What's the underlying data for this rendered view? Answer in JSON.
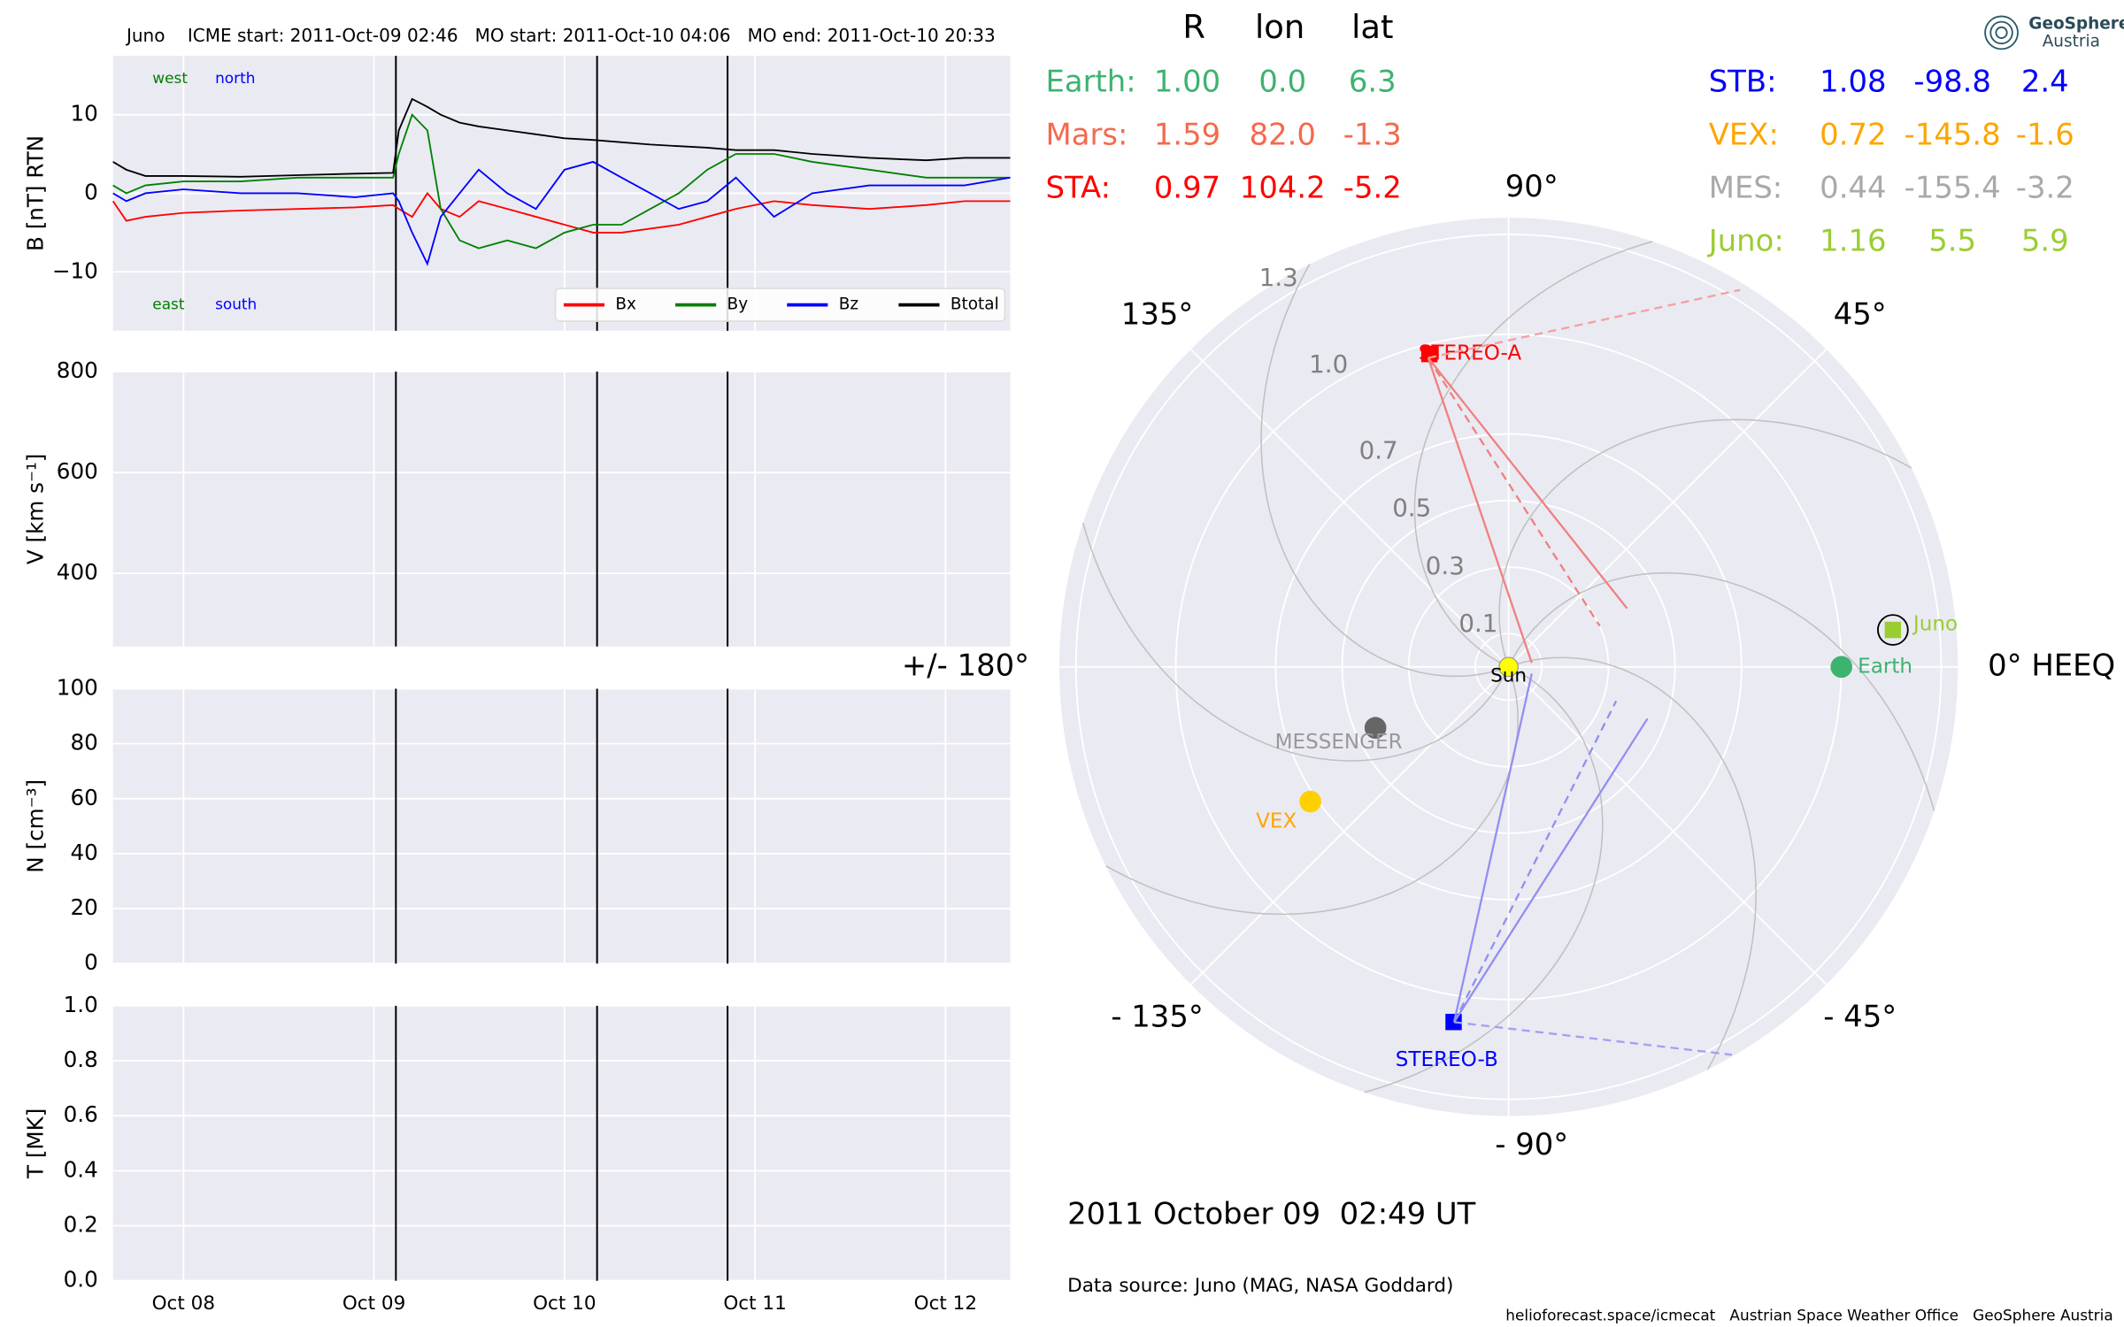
{
  "chart_data": [
    {
      "type": "line",
      "title": "Juno    ICME start: 2011-Oct-09 02:46   MO start: 2011-Oct-10 04:06   MO end: 2011-Oct-10 20:33",
      "ylabel": "B [nT] RTN",
      "ylim": [
        -17.5,
        17.5
      ],
      "yticks": [
        10,
        0,
        {
          "value": -10,
          "label": "−10"
        }
      ],
      "grid": true,
      "legend": "lower right",
      "x": [
        7.63,
        7.7,
        7.8,
        8.0,
        8.3,
        8.6,
        8.9,
        9.1,
        9.13,
        9.2,
        9.28,
        9.35,
        9.45,
        9.55,
        9.7,
        9.85,
        10.0,
        10.15,
        10.3,
        10.45,
        10.6,
        10.75,
        10.9,
        11.1,
        11.3,
        11.6,
        11.9,
        12.1,
        12.34
      ],
      "series": [
        {
          "name": "Bx",
          "color": "#ff0000",
          "values": [
            -1,
            -3.5,
            -3,
            -2.5,
            -2.2,
            -2,
            -1.8,
            -1.5,
            -2,
            -3,
            0,
            -2,
            -3,
            -1,
            -2,
            -3,
            -4,
            -5,
            -5,
            -4.5,
            -4,
            -3,
            -2,
            -1,
            -1.5,
            -2,
            -1.5,
            -1,
            -1
          ]
        },
        {
          "name": "By",
          "color": "#008000",
          "values": [
            1,
            0,
            1,
            1.5,
            1.5,
            2,
            2,
            2,
            5,
            10,
            8,
            -2,
            -6,
            -7,
            -6,
            -7,
            -5,
            -4,
            -4,
            -2,
            0,
            3,
            5,
            5,
            4,
            3,
            2,
            2,
            2
          ]
        },
        {
          "name": "Bz",
          "color": "#0000ff",
          "values": [
            0,
            -1,
            0,
            0.5,
            0,
            0,
            -0.5,
            0,
            -1,
            -5,
            -9,
            -3,
            0,
            3,
            0,
            -2,
            3,
            4,
            2,
            0,
            -2,
            -1,
            2,
            -3,
            0,
            1,
            1,
            1,
            2
          ]
        },
        {
          "name": "Btotal",
          "color": "#000000",
          "values": [
            4,
            3,
            2.2,
            2.2,
            2.1,
            2.3,
            2.5,
            2.6,
            8,
            12,
            11,
            10,
            9,
            8.5,
            8,
            7.5,
            7,
            6.8,
            6.5,
            6.2,
            6,
            5.8,
            5.5,
            5.5,
            5,
            4.5,
            4.2,
            4.5,
            4.5
          ]
        }
      ],
      "annotations": [
        {
          "text": "west",
          "color": "#008000"
        },
        {
          "text": "north",
          "color": "#0000ff"
        },
        {
          "text": "east",
          "color": "#008000"
        },
        {
          "text": "south",
          "color": "#0000ff"
        }
      ]
    },
    {
      "type": "line",
      "ylabel": "V [km s⁻¹]",
      "ylim": [
        255,
        800
      ],
      "yticks": [
        400,
        600,
        800
      ],
      "grid": true
    },
    {
      "type": "line",
      "ylabel": "N [cm⁻³]",
      "ylim": [
        0,
        100
      ],
      "yticks": [
        0,
        20,
        40,
        60,
        80,
        100
      ],
      "grid": true
    },
    {
      "type": "line",
      "ylabel": "T [MK]",
      "ylim": [
        0,
        1
      ],
      "yticks": [
        {
          "value": 0,
          "label": "0.0"
        },
        0.2,
        0.4,
        0.6,
        0.8,
        {
          "value": 1,
          "label": "1.0"
        }
      ],
      "grid": true
    },
    {
      "type": "polar",
      "rlim": [
        0,
        1.35
      ],
      "rticks": [
        0.1,
        0.3,
        0.5,
        0.7,
        {
          "value": 1,
          "label": "1.0"
        },
        1.3
      ],
      "thetaticks": [
        {
          "value": 0,
          "label": "0° HEEQ"
        },
        {
          "value": 45,
          "label": "45°"
        },
        {
          "value": 90,
          "label": "90°"
        },
        {
          "value": 135,
          "label": "135°"
        },
        {
          "value": 180,
          "label": "+/- 180°"
        },
        {
          "value": -135,
          "label": "- 135°"
        },
        {
          "value": -90,
          "label": "- 90°"
        },
        {
          "value": -45,
          "label": "- 45°"
        }
      ],
      "center_label": "Sun",
      "bodies": [
        {
          "name": "Earth",
          "r": 1.0,
          "lon": 0,
          "color": "#3cb371",
          "label_color": "#3cb371",
          "marker": "circle"
        },
        {
          "name": "Juno",
          "r": 1.16,
          "lon": 5.5,
          "color": "#9acd32",
          "label_color": "#9acd32",
          "marker": "square"
        },
        {
          "name": "STEREO-A",
          "r": 0.97,
          "lon": 104.2,
          "color": "#ff0000",
          "label_color": "#ff0000",
          "marker": "square"
        },
        {
          "name": "STEREO-B",
          "r": 1.08,
          "lon": -98.8,
          "color": "#0000ff",
          "label_color": "#0000ff",
          "marker": "square"
        },
        {
          "name": "MESSENGER",
          "r": 0.44,
          "lon": -155.4,
          "color": "#666666",
          "label_color": "#999999",
          "marker": "circle"
        },
        {
          "name": "VEX",
          "r": 0.72,
          "lon": -145.8,
          "color": "#ffd000",
          "label_color": "#ffa500",
          "marker": "circle"
        }
      ]
    }
  ],
  "time_axis": {
    "xlim": [
      7.63,
      12.34
    ],
    "xticks": [
      {
        "value": 8,
        "label": "Oct 08"
      },
      {
        "value": 9,
        "label": "Oct 09"
      },
      {
        "value": 10,
        "label": "Oct 10"
      },
      {
        "value": 11,
        "label": "Oct 11"
      },
      {
        "value": 12,
        "label": "Oct 12"
      }
    ]
  },
  "event_lines": [
    9.115,
    10.171,
    10.856
  ],
  "positions_table": {
    "header": [
      "R",
      "lon",
      "lat"
    ],
    "left": [
      {
        "name": "Earth:",
        "color": "#3cb371",
        "cells": [
          "1.00",
          "0.0",
          "6.3"
        ]
      },
      {
        "name": "Mars:",
        "color": "#f46a4e",
        "cells": [
          "1.59",
          "82.0",
          "-1.3"
        ]
      },
      {
        "name": "STA:",
        "color": "#ff0000",
        "cells": [
          "0.97",
          "104.2",
          "-5.2"
        ]
      }
    ],
    "right": [
      {
        "name": "STB:",
        "color": "#0000ff",
        "cells": [
          "1.08",
          "-98.8",
          "2.4"
        ]
      },
      {
        "name": "VEX:",
        "color": "#ffa500",
        "cells": [
          "0.72",
          "-145.8",
          "-1.6"
        ]
      },
      {
        "name": "MES:",
        "color": "#a9a9a9",
        "cells": [
          "0.44",
          "-155.4",
          "-3.2"
        ]
      },
      {
        "name": "Juno:",
        "color": "#9acd32",
        "cells": [
          "1.16",
          "5.5",
          "5.9"
        ]
      }
    ]
  },
  "timestamp": "2011 October 09  02:49 UT",
  "data_source": "Data source: Juno (MAG, NASA Goddard)",
  "footer": "helioforecast.space/icmecat   Austrian Space Weather Office   GeoSphere Austria",
  "logo": [
    "GeoSphere",
    "Austria"
  ]
}
